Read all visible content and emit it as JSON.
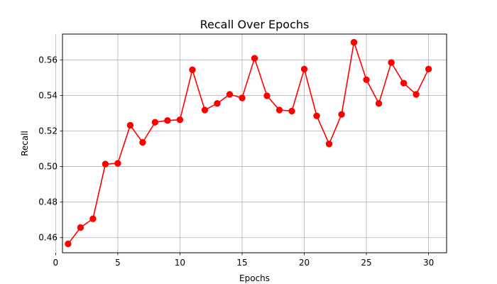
{
  "chart_data": {
    "type": "line",
    "title": "Recall Over Epochs",
    "xlabel": "Epochs",
    "ylabel": "Recall",
    "xlim": [
      0.55,
      31.45
    ],
    "ylim": [
      0.4515,
      0.5745
    ],
    "x_ticks": [
      0,
      5,
      10,
      15,
      20,
      25,
      30
    ],
    "x_tick_labels": [
      "0",
      "5",
      "10",
      "15",
      "20",
      "25",
      "30"
    ],
    "y_ticks": [
      0.46,
      0.48,
      0.5,
      0.52,
      0.54,
      0.56
    ],
    "y_tick_labels": [
      "0.46",
      "0.48",
      "0.50",
      "0.52",
      "0.54",
      "0.56"
    ],
    "grid": true,
    "series": [
      {
        "color": "#ff0000",
        "marker": "circle",
        "x": [
          1,
          2,
          3,
          4,
          5,
          6,
          7,
          8,
          9,
          10,
          11,
          12,
          13,
          14,
          15,
          16,
          17,
          18,
          19,
          20,
          21,
          22,
          23,
          24,
          25,
          26,
          27,
          28,
          29,
          30
        ],
        "values": [
          0.4565,
          0.4657,
          0.4706,
          0.5014,
          0.5018,
          0.5232,
          0.5136,
          0.5249,
          0.5259,
          0.5263,
          0.5544,
          0.5318,
          0.5355,
          0.5406,
          0.5386,
          0.5609,
          0.5398,
          0.5318,
          0.5312,
          0.5548,
          0.5285,
          0.5127,
          0.5293,
          0.5699,
          0.5488,
          0.5355,
          0.5585,
          0.5469,
          0.5406,
          0.5548
        ]
      }
    ]
  }
}
